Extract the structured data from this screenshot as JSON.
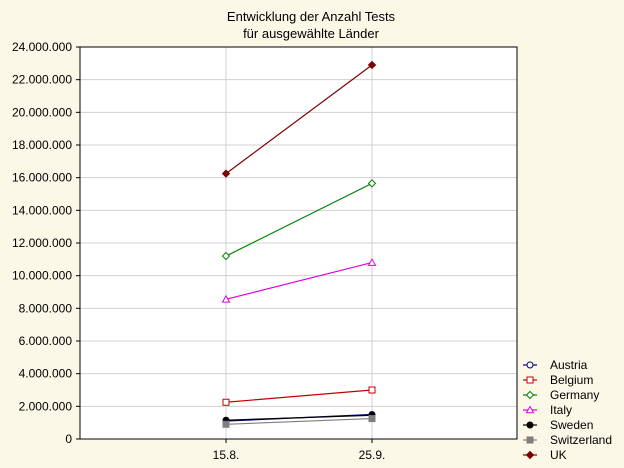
{
  "chart_data": {
    "type": "line",
    "title_lines": [
      "Entwicklung der Anzahl Tests",
      "für ausgewählte Länder"
    ],
    "categories": [
      "15.8.",
      "25.9."
    ],
    "ylim": [
      0,
      24000000
    ],
    "y_ticks": [
      "0",
      "2.000.000",
      "4.000.000",
      "6.000.000",
      "8.000.000",
      "10.000.000",
      "12.000.000",
      "14.000.000",
      "16.000.000",
      "18.000.000",
      "20.000.000",
      "22.000.000",
      "24.000.000"
    ],
    "grid": true,
    "legend_position": "right-bottom",
    "series": [
      {
        "name": "Austria",
        "values": [
          1100000,
          1500000
        ],
        "color": "#00007f",
        "marker": "circle-open"
      },
      {
        "name": "Belgium",
        "values": [
          2250000,
          3000000
        ],
        "color": "#c00000",
        "marker": "square-open"
      },
      {
        "name": "Germany",
        "values": [
          11200000,
          15650000
        ],
        "color": "#007f00",
        "marker": "diamond-open"
      },
      {
        "name": "Italy",
        "values": [
          8550000,
          10800000
        ],
        "color": "#e000e0",
        "marker": "triangle-open"
      },
      {
        "name": "Sweden",
        "values": [
          1150000,
          1450000
        ],
        "color": "#000000",
        "marker": "circle-filled"
      },
      {
        "name": "Switzerland",
        "values": [
          900000,
          1250000
        ],
        "color": "#7f7f7f",
        "marker": "square-filled"
      },
      {
        "name": "UK",
        "values": [
          16250000,
          22900000
        ],
        "color": "#7f0000",
        "marker": "diamond-filled"
      }
    ]
  }
}
